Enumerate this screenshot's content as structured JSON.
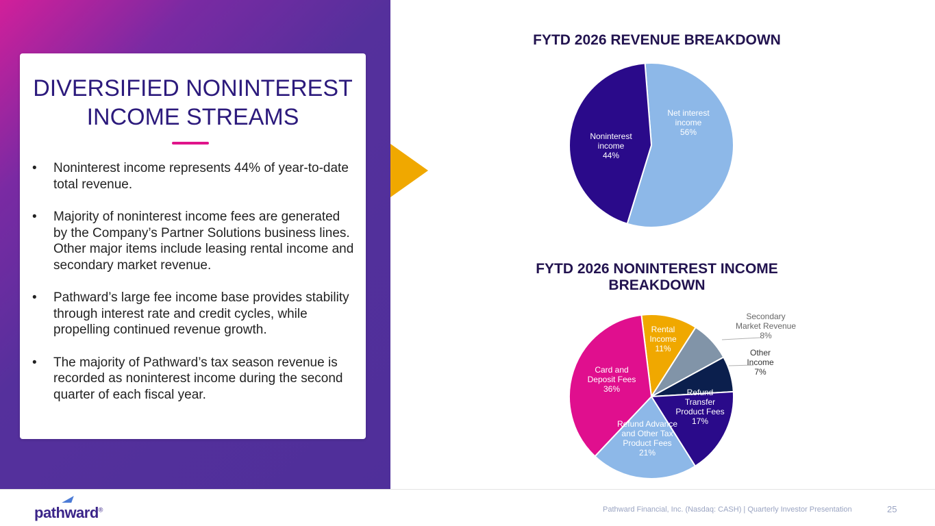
{
  "slide": {
    "title_line1": "DIVERSIFIED NONINTEREST",
    "title_line2": "INCOME STREAMS",
    "bullets": [
      "Noninterest income represents 44% of year-to-date total revenue.",
      "Majority of noninterest income fees are generated by the Company’s Partner Solutions business lines. Other major items include leasing rental income and secondary market revenue.",
      "Pathward’s large fee income base provides stability through interest rate and credit cycles, while propelling continued revenue growth.",
      "The majority of Pathward’s tax season revenue is recorded as noninterest income during the second quarter of each fiscal year."
    ]
  },
  "colors": {
    "title": "#2c1a7c",
    "accent": "#e0148a",
    "arrow": "#f0a800"
  },
  "chart_data": [
    {
      "type": "pie",
      "title": "FYTD 2026 REVENUE BREAKDOWN",
      "slices": [
        {
          "name": "Net interest income",
          "label_lines": [
            "Net interest",
            "income",
            "56%"
          ],
          "value": 56,
          "color": "#8db8e8",
          "label_color": "#ffffff"
        },
        {
          "name": "Noninterest income",
          "label_lines": [
            "Noninterest",
            "income",
            "44%"
          ],
          "value": 44,
          "color": "#2a0a8a",
          "label_color": "#ffffff"
        }
      ]
    },
    {
      "type": "pie",
      "title": "FYTD 2026 NONINTEREST INCOME BREAKDOWN",
      "slices": [
        {
          "name": "Rental Income",
          "label_lines": [
            "Rental",
            "Income",
            "11%"
          ],
          "value": 11,
          "color": "#f0a800",
          "label_color": "#ffffff"
        },
        {
          "name": "Secondary Market Revenue",
          "label_lines": [
            "Secondary",
            "Market Revenue",
            "8%"
          ],
          "value": 8,
          "color": "#8194a8",
          "label_color": "#666666",
          "outside": true
        },
        {
          "name": "Other Income",
          "label_lines": [
            "Other",
            "Income",
            "7%"
          ],
          "value": 7,
          "color": "#0b1f4d",
          "label_color": "#333333",
          "outside": true
        },
        {
          "name": "Refund Transfer Product Fees",
          "label_lines": [
            "Refund",
            "Transfer",
            "Product Fees",
            "17%"
          ],
          "value": 17,
          "color": "#2a0a8a",
          "label_color": "#ffffff"
        },
        {
          "name": "Refund Advance and Other Tax Product Fees",
          "label_lines": [
            "Refund Advance",
            "and Other Tax",
            "Product Fees",
            "21%"
          ],
          "value": 21,
          "color": "#8db8e8",
          "label_color": "#ffffff"
        },
        {
          "name": "Card and Deposit Fees",
          "label_lines": [
            "Card and",
            "Deposit Fees",
            "36%"
          ],
          "value": 36,
          "color": "#e00f8e",
          "label_color": "#ffffff"
        }
      ]
    }
  ],
  "footer": {
    "logo_text": "pathward",
    "logo_mark": "®",
    "text": "Pathward Financial, Inc. (Nasdaq: CASH) | Quarterly Investor Presentation",
    "page_number": "25"
  }
}
